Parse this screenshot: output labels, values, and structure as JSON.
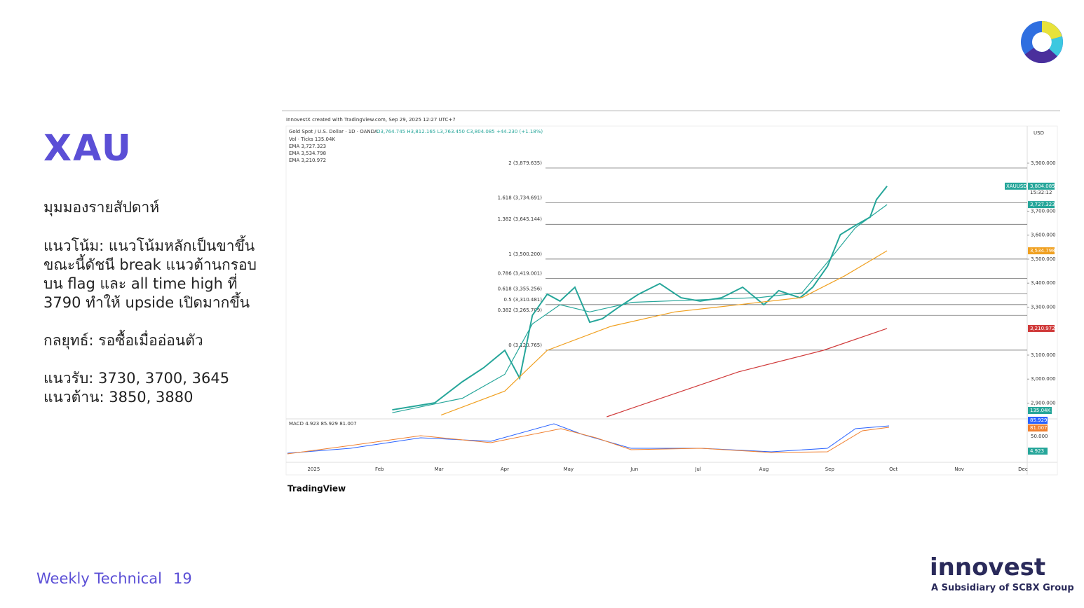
{
  "slide": {
    "title": "XAU",
    "view": "มุมมองรายสัปดาห์",
    "trend": [
      "แนวโน้ม: แนวโน้มหลักเป็นขาขึ้น",
      "ขณะนี้ดัชนี break แนวต้านกรอบ",
      "บน flag และ all time high ที่",
      "3790 ทำให้ upside เปิดมากขึ้น"
    ],
    "strategy": "กลยุทธ์: รอซื้อเมื่ออ่อนตัว",
    "support": "แนวรับ: 3730, 3700, 3645",
    "resistance": "แนวต้าน: 3850, 3880",
    "footer": "Weekly Technical",
    "page": "19",
    "brand": "innovest",
    "brand_sub": "A Subsidiary of SCBX Group"
  },
  "chart_data": {
    "type": "line",
    "credit": "InnovestX created with TradingView.com, Sep 29, 2025 12:27 UTC+7",
    "symbol": "Gold Spot / U.S. Dollar · 1D · OANDA",
    "ohlc": "O3,764.745 H3,812.165 L3,763.450 C3,804.085 +44.230 (+1.18%)",
    "legend_lines": [
      "Vol · Ticks 135.04K",
      "EMA 3,727.323",
      "EMA 3,534.798",
      "EMA 3,210.972"
    ],
    "currency": "USD",
    "ticker": "XAUUSD",
    "countdown": "15:32:12",
    "xlim": [
      -13,
      336
    ],
    "ylim": [
      2843,
      4040
    ],
    "xticks": [
      {
        "value": 0,
        "label": "2025"
      },
      {
        "value": 31,
        "label": "Feb"
      },
      {
        "value": 59,
        "label": "Mar"
      },
      {
        "value": 90,
        "label": "Apr"
      },
      {
        "value": 120,
        "label": "May"
      },
      {
        "value": 151,
        "label": "Jun"
      },
      {
        "value": 181,
        "label": "Jul"
      },
      {
        "value": 212,
        "label": "Aug"
      },
      {
        "value": 243,
        "label": "Sep"
      },
      {
        "value": 273,
        "label": "Oct"
      },
      {
        "value": 304,
        "label": "Nov"
      },
      {
        "value": 334,
        "label": "Dec"
      }
    ],
    "yticks": [
      {
        "value": 3900,
        "label": "3,900.000"
      },
      {
        "value": 3700,
        "label": "3,700.000"
      },
      {
        "value": 3600,
        "label": "3,600.000"
      },
      {
        "value": 3500,
        "label": "3,500.000"
      },
      {
        "value": 3400,
        "label": "3,400.000"
      },
      {
        "value": 3300,
        "label": "3,300.000"
      },
      {
        "value": 3100,
        "label": "3,100.000"
      },
      {
        "value": 3000,
        "label": "3,000.000"
      },
      {
        "value": 2900,
        "label": "2,900.000"
      }
    ],
    "fib_levels": [
      {
        "value": 3879.635,
        "label": "2 (3,879.635)"
      },
      {
        "value": 3734.691,
        "label": "1.618 (3,734.691)"
      },
      {
        "value": 3645.144,
        "label": "1.382 (3,645.144)"
      },
      {
        "value": 3500.2,
        "label": "1 (3,500.200)"
      },
      {
        "value": 3419.001,
        "label": "0.786 (3,419.001)"
      },
      {
        "value": 3355.256,
        "label": "0.618 (3,355.256)"
      },
      {
        "value": 3310.481,
        "label": "0.5 (3,310.481)"
      },
      {
        "value": 3265.709,
        "label": "0.382 (3,265.709)"
      },
      {
        "value": 3120.765,
        "label": "0 (3,120.765)"
      }
    ],
    "series": [
      {
        "name": "XAUUSD",
        "color": "#26a69a",
        "width": 2,
        "x": [
          37,
          57,
          70,
          80,
          90,
          97,
          103,
          110,
          116,
          123,
          130,
          136,
          143,
          153,
          163,
          173,
          182,
          192,
          202,
          212,
          219,
          229,
          235,
          242,
          248,
          255,
          262,
          265,
          270
        ],
        "values": [
          2872,
          2901,
          2989,
          3047,
          3120,
          3004,
          3266,
          3354,
          3325,
          3383,
          3237,
          3252,
          3296,
          3354,
          3398,
          3339,
          3325,
          3339,
          3383,
          3310,
          3369,
          3339,
          3383,
          3471,
          3602,
          3640,
          3675,
          3748,
          3804.085
        ]
      },
      {
        "name": "EMA",
        "color": "#26a69a",
        "width": 1.2,
        "x": [
          37,
          70,
          90,
          103,
          116,
          130,
          150,
          180,
          210,
          230,
          245,
          255,
          270
        ],
        "values": [
          2860,
          2920,
          3020,
          3230,
          3310,
          3280,
          3320,
          3330,
          3340,
          3360,
          3520,
          3630,
          3727.323
        ]
      },
      {
        "name": "EMA",
        "color": "#f0a020",
        "width": 1.2,
        "x": [
          60,
          90,
          110,
          140,
          170,
          200,
          230,
          250,
          270
        ],
        "values": [
          2850,
          2950,
          3120,
          3220,
          3280,
          3310,
          3340,
          3430,
          3534.798
        ]
      },
      {
        "name": "EMA",
        "color": "#d03a3a",
        "width": 1.2,
        "x": [
          138,
          200,
          240,
          270
        ],
        "values": [
          2843,
          3030,
          3120,
          3210.972
        ]
      }
    ],
    "price_tags": [
      {
        "value": 3804.085,
        "label": "3,804.085",
        "color": "#26a69a"
      },
      {
        "value": 3727.323,
        "label": "3,727.323",
        "color": "#26a69a"
      },
      {
        "value": 3534.798,
        "label": "3,534.798",
        "color": "#f0a020"
      },
      {
        "value": 3210.972,
        "label": "3,210.972",
        "color": "#d03a3a"
      }
    ],
    "volume_tag": "135.04K",
    "macd_label": "MACD 4.923 85.929 81.007",
    "macd_tick": "50.000",
    "macd_tags": [
      {
        "label": "85.929",
        "color": "#2962ff"
      },
      {
        "label": "81.007",
        "color": "#f08030"
      },
      {
        "label": "4.923",
        "color": "#26a69a"
      }
    ],
    "brand": "TradingView"
  }
}
